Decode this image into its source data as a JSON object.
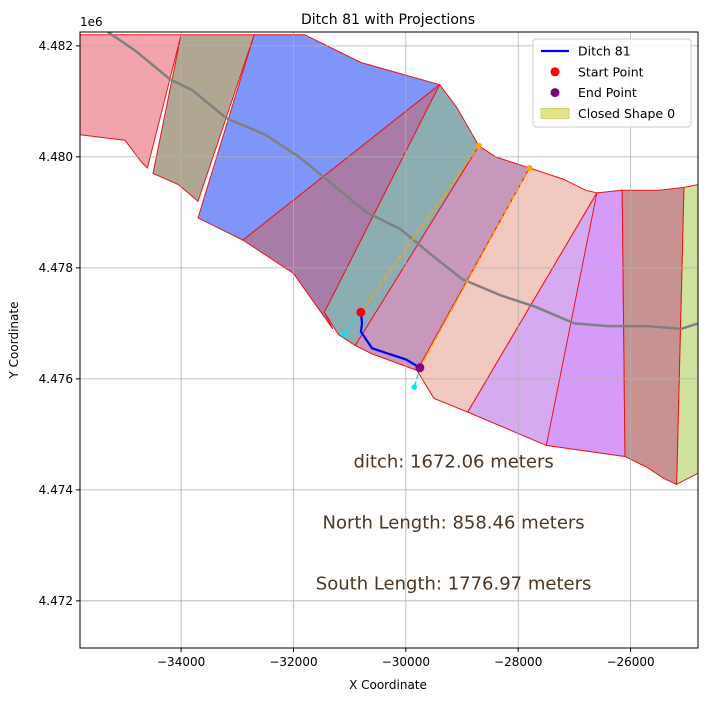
{
  "chart_data": {
    "type": "map-plot",
    "title": "Ditch 81 with Projections",
    "xlabel": "X Coordinate",
    "ylabel": "Y Coordinate",
    "y_offset_label": "1e6",
    "xlim": [
      -35800,
      -24800
    ],
    "ylim": [
      4471150,
      4482250
    ],
    "x_ticks": [
      -34000,
      -32000,
      -30000,
      -28000,
      -26000
    ],
    "x_tick_labels": [
      "−34000",
      "−32000",
      "−30000",
      "−28000",
      "−26000"
    ],
    "y_ticks": [
      4472000,
      4474000,
      4476000,
      4478000,
      4480000,
      4482000
    ],
    "y_tick_labels": [
      "4.472",
      "4.474",
      "4.476",
      "4.478",
      "4.480",
      "4.482"
    ],
    "grid": true,
    "legend_position": "top-right",
    "legend": [
      {
        "label": "Ditch 81",
        "kind": "line",
        "color": "#0000ff"
      },
      {
        "label": "Start Point",
        "kind": "dot",
        "color": "#ff0000"
      },
      {
        "label": "End Point",
        "kind": "dot",
        "color": "#800080"
      },
      {
        "label": "Closed Shape 0",
        "kind": "patch",
        "color": "#e3e38a"
      }
    ],
    "zones": [
      {
        "color": "#f2a3ab",
        "points": [
          [
            -35800,
            4482200
          ],
          [
            -35000,
            4482200
          ],
          [
            -34000,
            4482200
          ],
          [
            -34600,
            4479800
          ],
          [
            -34700,
            4479900
          ],
          [
            -35000,
            4480300
          ],
          [
            -35800,
            4480400
          ]
        ]
      },
      {
        "color": "#b0a793",
        "points": [
          [
            -34000,
            4482200
          ],
          [
            -32700,
            4482200
          ],
          [
            -33700,
            4479200
          ],
          [
            -34050,
            4479500
          ],
          [
            -34500,
            4479700
          ]
        ]
      },
      {
        "color": "#8095f8",
        "points": [
          [
            -32700,
            4482200
          ],
          [
            -31800,
            4482200
          ],
          [
            -30800,
            4481700
          ],
          [
            -29400,
            4481300
          ],
          [
            -32900,
            4478500
          ],
          [
            -33700,
            4478900
          ]
        ]
      },
      {
        "color": "#a97ca8",
        "points": [
          [
            -29400,
            4481300
          ],
          [
            -31450,
            4477200
          ],
          [
            -31300,
            4476900
          ],
          [
            -32000,
            4477900
          ],
          [
            -32900,
            4478500
          ]
        ]
      },
      {
        "color": "#8caeb2",
        "points": [
          [
            -29400,
            4481300
          ],
          [
            -29100,
            4480900
          ],
          [
            -28700,
            4480200
          ],
          [
            -30900,
            4476600
          ],
          [
            -31200,
            4476800
          ],
          [
            -31450,
            4477200
          ]
        ]
      },
      {
        "color": "#c897bc",
        "points": [
          [
            -28700,
            4480200
          ],
          [
            -28400,
            4480000
          ],
          [
            -27800,
            4479800
          ],
          [
            -29800,
            4476150
          ],
          [
            -30600,
            4476450
          ],
          [
            -30900,
            4476600
          ]
        ]
      },
      {
        "color": "#f2c9c0",
        "points": [
          [
            -27800,
            4479800
          ],
          [
            -27200,
            4479600
          ],
          [
            -26800,
            4479400
          ],
          [
            -26600,
            4479350
          ],
          [
            -28900,
            4475400
          ],
          [
            -29500,
            4475650
          ],
          [
            -29800,
            4476150
          ]
        ]
      },
      {
        "color": "#d5aaf0",
        "points": [
          [
            -26600,
            4479350
          ],
          [
            -26100,
            4479350
          ],
          [
            -26300,
            4479300
          ],
          [
            -27500,
            4474800
          ],
          [
            -28900,
            4475400
          ]
        ]
      },
      {
        "color": "#d69bf9",
        "points": [
          [
            -26600,
            4479350
          ],
          [
            -26150,
            4479400
          ],
          [
            -26100,
            4474600
          ],
          [
            -27500,
            4474800
          ]
        ]
      },
      {
        "color": "#c89293",
        "points": [
          [
            -26150,
            4479400
          ],
          [
            -25500,
            4479400
          ],
          [
            -25050,
            4479450
          ],
          [
            -25180,
            4474100
          ],
          [
            -25400,
            4474200
          ],
          [
            -25700,
            4474400
          ],
          [
            -26100,
            4474600
          ]
        ]
      },
      {
        "color": "#d1e29e",
        "points": [
          [
            -25050,
            4479450
          ],
          [
            -24800,
            4479500
          ],
          [
            -24800,
            4474300
          ],
          [
            -25180,
            4474100
          ]
        ]
      }
    ],
    "river": [
      [
        -35800,
        4482600
      ],
      [
        -34800,
        4481900
      ],
      [
        -34200,
        4481400
      ],
      [
        -33800,
        4481200
      ],
      [
        -33200,
        4480700
      ],
      [
        -32500,
        4480400
      ],
      [
        -31900,
        4480000
      ],
      [
        -31300,
        4479500
      ],
      [
        -30700,
        4479000
      ],
      [
        -30100,
        4478700
      ],
      [
        -29500,
        4478200
      ],
      [
        -29000,
        4477800
      ],
      [
        -28300,
        4477500
      ],
      [
        -27700,
        4477300
      ],
      [
        -27000,
        4477000
      ],
      [
        -26400,
        4476950
      ],
      [
        -25700,
        4476950
      ],
      [
        -25100,
        4476900
      ],
      [
        -24800,
        4477000
      ]
    ],
    "ditch": [
      [
        -30800,
        4477200
      ],
      [
        -30780,
        4477000
      ],
      [
        -30800,
        4476850
      ],
      [
        -30600,
        4476550
      ],
      [
        -30300,
        4476450
      ],
      [
        -30000,
        4476350
      ],
      [
        -29750,
        4476200
      ]
    ],
    "north_projection": [
      [
        -30800,
        4477200
      ],
      [
        -28700,
        4480200
      ]
    ],
    "south_projection": [
      [
        -29750,
        4476200
      ],
      [
        -27800,
        4479800
      ]
    ],
    "cyan_projections": [
      [
        [
          -30800,
          4477200
        ],
        [
          -31100,
          4476800
        ]
      ],
      [
        [
          -29750,
          4476200
        ],
        [
          -29850,
          4475850
        ]
      ]
    ],
    "start_point": [
      -30800,
      4477200
    ],
    "end_point": [
      -29750,
      4476200
    ],
    "annotations": [
      {
        "text": "ditch: 1672.06 meters",
        "x": -29150,
        "y": 4474400
      },
      {
        "text": "North Length: 858.46 meters",
        "x": -29150,
        "y": 4473300
      },
      {
        "text": "South Length: 1776.97 meters",
        "x": -29150,
        "y": 4472200
      }
    ]
  }
}
